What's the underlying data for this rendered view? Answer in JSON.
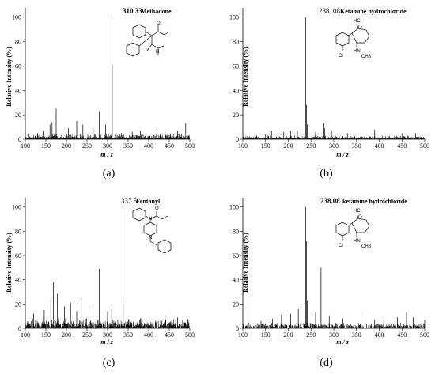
{
  "chart_data": [
    {
      "type": "line",
      "panel_caption": "(a)",
      "compound": "Methadone",
      "peak_label": "310.33",
      "peak_bold": true,
      "xlabel": "m / z",
      "ylabel": "Relative Intensity (%)",
      "xlim": [
        100,
        500
      ],
      "ylim": [
        0,
        105
      ],
      "xticks": [
        "100",
        "150",
        "200",
        "250",
        "300",
        "350",
        "400",
        "450",
        "500"
      ],
      "yticks": [
        "0",
        "20",
        "40",
        "60",
        "80",
        "100"
      ],
      "noise_level": 4,
      "peaks": [
        [
          310.33,
          100
        ],
        [
          311.3,
          61
        ],
        [
          175,
          25
        ],
        [
          280,
          23
        ],
        [
          165,
          14
        ],
        [
          160,
          12
        ],
        [
          225,
          15
        ],
        [
          240,
          12
        ],
        [
          255,
          10
        ],
        [
          205,
          9
        ],
        [
          295,
          12
        ],
        [
          490,
          13
        ],
        [
          265,
          9
        ],
        [
          470,
          7
        ],
        [
          360,
          6
        ],
        [
          420,
          6
        ],
        [
          380,
          7
        ],
        [
          440,
          6
        ],
        [
          130,
          5
        ],
        [
          145,
          7
        ]
      ],
      "structure_labels": [
        "O",
        "N"
      ]
    },
    {
      "type": "line",
      "panel_caption": "(b)",
      "compound": "Ketamine hydrochloride",
      "peak_label": "238. 08",
      "peak_bold": false,
      "xlabel": "m / z",
      "ylabel": "Relative Intensity (%)",
      "xlim": [
        100,
        500
      ],
      "ylim": [
        0,
        105
      ],
      "xticks": [
        "100",
        "150",
        "200",
        "250",
        "300",
        "350",
        "400",
        "450",
        "500"
      ],
      "yticks": [
        "0",
        "20",
        "40",
        "60",
        "80",
        "100"
      ],
      "noise_level": 2.5,
      "peaks": [
        [
          238.08,
          100
        ],
        [
          240,
          28
        ],
        [
          242,
          12
        ],
        [
          278,
          13
        ],
        [
          280,
          9
        ],
        [
          163,
          7
        ],
        [
          190,
          6
        ],
        [
          205,
          7
        ],
        [
          220,
          7
        ],
        [
          260,
          6
        ],
        [
          295,
          7
        ],
        [
          390,
          8
        ],
        [
          150,
          4
        ],
        [
          330,
          5
        ],
        [
          450,
          5
        ],
        [
          130,
          3
        ],
        [
          480,
          5
        ]
      ],
      "structure_labels": [
        "HCl",
        "O",
        "Cl",
        "HN",
        "CH3"
      ]
    },
    {
      "type": "line",
      "panel_caption": "(c)",
      "compound": "Fentanyl",
      "peak_label": "337.5",
      "peak_bold": false,
      "xlabel": "m / z",
      "ylabel": "Relative Intensity (%)",
      "xlim": [
        100,
        500
      ],
      "ylim": [
        0,
        105
      ],
      "xticks": [
        "100",
        "150",
        "200",
        "250",
        "300",
        "350",
        "400",
        "450",
        "500"
      ],
      "yticks": [
        "0",
        "20",
        "40",
        "60",
        "80",
        "100"
      ],
      "noise_level": 7,
      "peaks": [
        [
          337.5,
          100
        ],
        [
          280,
          49
        ],
        [
          168,
          38
        ],
        [
          172,
          35
        ],
        [
          178,
          29
        ],
        [
          162,
          24
        ],
        [
          236,
          25
        ],
        [
          210,
          21
        ],
        [
          255,
          18
        ],
        [
          338,
          23
        ],
        [
          195,
          18
        ],
        [
          146,
          15
        ],
        [
          120,
          12
        ],
        [
          300,
          14
        ],
        [
          310,
          16
        ],
        [
          225,
          14
        ],
        [
          440,
          10
        ],
        [
          470,
          9
        ],
        [
          380,
          8
        ]
      ],
      "structure_labels": [
        "O",
        "N",
        "N"
      ]
    },
    {
      "type": "line",
      "panel_caption": "(d)",
      "compound": "ketamine hydrochloride",
      "peak_label": "238.08",
      "peak_bold": true,
      "xlabel": "m / z",
      "ylabel": "Relative Intensity (%)",
      "xlim": [
        100,
        500
      ],
      "ylim": [
        0,
        105
      ],
      "xticks": [
        "100",
        "150",
        "200",
        "250",
        "300",
        "350",
        "400",
        "450",
        "500"
      ],
      "yticks": [
        "0",
        "20",
        "40",
        "60",
        "80",
        "100"
      ],
      "noise_level": 4,
      "peaks": [
        [
          238.08,
          100
        ],
        [
          240,
          72
        ],
        [
          272,
          50
        ],
        [
          242,
          23
        ],
        [
          120,
          36
        ],
        [
          222,
          16
        ],
        [
          260,
          13
        ],
        [
          185,
          11
        ],
        [
          205,
          12
        ],
        [
          290,
          10
        ],
        [
          460,
          13
        ],
        [
          360,
          10
        ],
        [
          165,
          8
        ],
        [
          475,
          9
        ],
        [
          320,
          8
        ],
        [
          410,
          8
        ],
        [
          440,
          9
        ],
        [
          390,
          7
        ],
        [
          140,
          6
        ],
        [
          500,
          7
        ]
      ],
      "structure_labels": [
        "HCl",
        "O",
        "Cl",
        "HN",
        "CH3"
      ]
    }
  ]
}
